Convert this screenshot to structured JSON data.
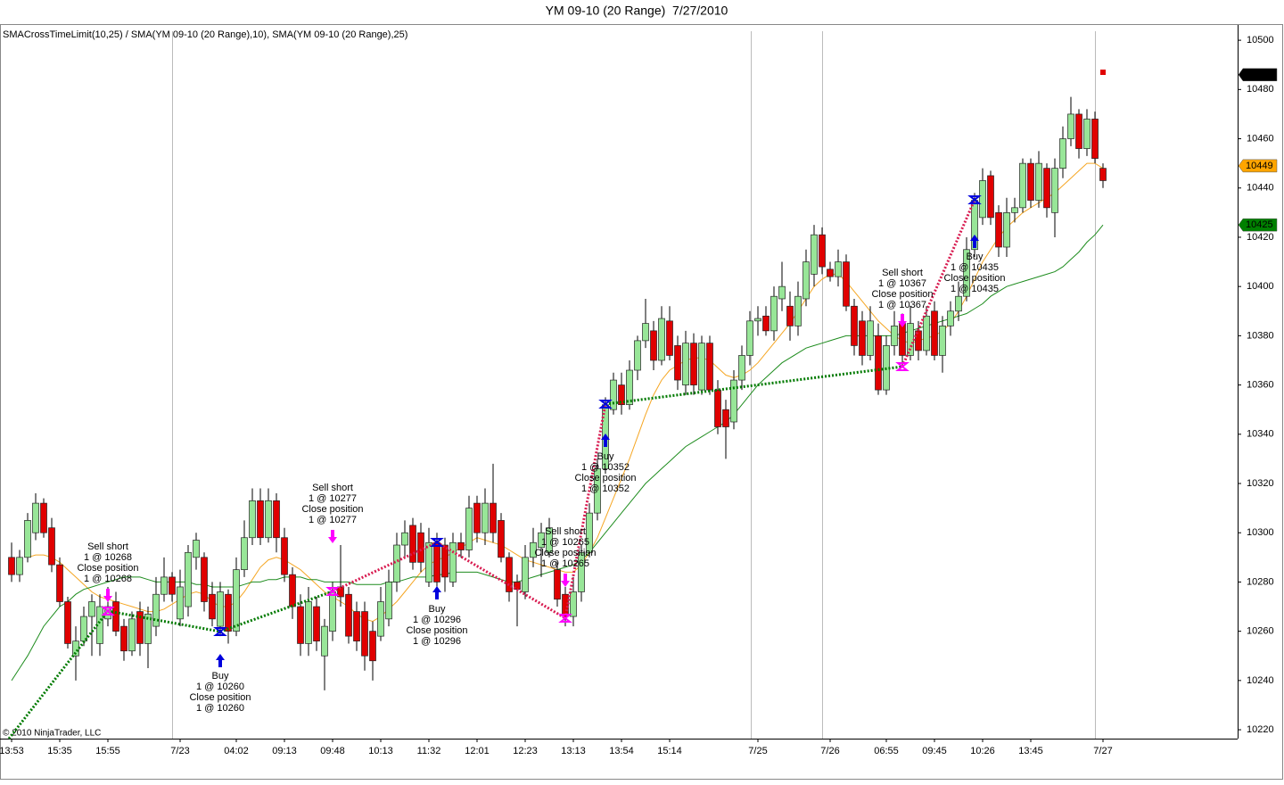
{
  "chart_data": {
    "type": "candlestick",
    "title": "YM 09-10 (20 Range)  7/27/2010",
    "indicator_label": "SMACrossTimeLimit(10,25) / SMA(YM 09-10 (20 Range),10), SMA(YM 09-10 (20 Range),25)",
    "copyright": "© 2010 NinjaTrader, LLC",
    "categories": [
      "13:53",
      null,
      null,
      null,
      null,
      null,
      "15:35",
      null,
      null,
      null,
      null,
      null,
      "15:55",
      null,
      null,
      null,
      null,
      null,
      null,
      null,
      null,
      "7/23",
      null,
      null,
      null,
      null,
      null,
      null,
      "04:02",
      null,
      null,
      null,
      null,
      null,
      "09:13",
      null,
      null,
      null,
      null,
      null,
      "09:48",
      null,
      null,
      null,
      null,
      null,
      "10:13",
      null,
      null,
      null,
      null,
      null,
      "11:32",
      null,
      null,
      null,
      null,
      null,
      "12:01",
      null,
      null,
      null,
      null,
      null,
      "12:23",
      null,
      null,
      null,
      null,
      null,
      "13:13",
      null,
      null,
      null,
      null,
      null,
      "13:54",
      null,
      null,
      null,
      null,
      null,
      "15:14",
      null,
      null,
      null,
      null,
      null,
      null,
      null,
      null,
      null,
      null,
      "7/25",
      null,
      null,
      null,
      null,
      null,
      null,
      null,
      null,
      "7/26",
      null,
      null,
      null,
      null,
      null,
      null,
      "06:55",
      null,
      null,
      null,
      null,
      null,
      "09:45",
      null,
      null,
      null,
      null,
      null,
      "10:26",
      null,
      null,
      null,
      null,
      null,
      "13:45",
      null,
      null,
      null,
      null,
      null,
      null,
      null,
      null,
      "7/27"
    ],
    "ohlc": [
      [
        10290,
        10296,
        10280,
        10283
      ],
      [
        10283,
        10293,
        10280,
        10290
      ],
      [
        10290,
        10308,
        10288,
        10305
      ],
      [
        10300,
        10316,
        10297,
        10312
      ],
      [
        10312,
        10314,
        10298,
        10300
      ],
      [
        10302,
        10306,
        10284,
        10287
      ],
      [
        10287,
        10290,
        10270,
        10272
      ],
      [
        10272,
        10274,
        10253,
        10255
      ],
      [
        10250,
        10262,
        10240,
        10256
      ],
      [
        10256,
        10270,
        10254,
        10266
      ],
      [
        10266,
        10275,
        10250,
        10272
      ],
      [
        10255,
        10275,
        10250,
        10270
      ],
      [
        10265,
        10278,
        10262,
        10270
      ],
      [
        10272,
        10276,
        10258,
        10260
      ],
      [
        10262,
        10265,
        10248,
        10252
      ],
      [
        10252,
        10268,
        10250,
        10265
      ],
      [
        10268,
        10272,
        10250,
        10255
      ],
      [
        10255,
        10270,
        10245,
        10267
      ],
      [
        10262,
        10282,
        10258,
        10275
      ],
      [
        10275,
        10290,
        10272,
        10282
      ],
      [
        10282,
        10284,
        10272,
        10275
      ],
      [
        10265,
        10285,
        10262,
        10278
      ],
      [
        10270,
        10295,
        10266,
        10292
      ],
      [
        10290,
        10300,
        10285,
        10297
      ],
      [
        10290,
        10292,
        10268,
        10272
      ],
      [
        10275,
        10280,
        10262,
        10265
      ],
      [
        10262,
        10280,
        10258,
        10276
      ],
      [
        10275,
        10277,
        10255,
        10260
      ],
      [
        10260,
        10290,
        10258,
        10285
      ],
      [
        10285,
        10305,
        10282,
        10298
      ],
      [
        10298,
        10318,
        10295,
        10313
      ],
      [
        10313,
        10318,
        10295,
        10298
      ],
      [
        10298,
        10318,
        10296,
        10313
      ],
      [
        10313,
        10316,
        10292,
        10298
      ],
      [
        10298,
        10302,
        10280,
        10283
      ],
      [
        10283,
        10286,
        10265,
        10270
      ],
      [
        10270,
        10275,
        10250,
        10255
      ],
      [
        10255,
        10278,
        10250,
        10272
      ],
      [
        10270,
        10274,
        10252,
        10256
      ],
      [
        10250,
        10265,
        10236,
        10262
      ],
      [
        10260,
        10280,
        10256,
        10276
      ],
      [
        10278,
        10295,
        10270,
        10274
      ],
      [
        10275,
        10278,
        10255,
        10258
      ],
      [
        10268,
        10272,
        10252,
        10256
      ],
      [
        10268,
        10272,
        10244,
        10250
      ],
      [
        10260,
        10264,
        10240,
        10248
      ],
      [
        10258,
        10278,
        10256,
        10272
      ],
      [
        10265,
        10285,
        10262,
        10280
      ],
      [
        10280,
        10300,
        10276,
        10295
      ],
      [
        10295,
        10305,
        10290,
        10300
      ],
      [
        10303,
        10306,
        10285,
        10288
      ],
      [
        10300,
        10304,
        10284,
        10288
      ],
      [
        10280,
        10302,
        10278,
        10296
      ],
      [
        10296,
        10300,
        10276,
        10280
      ],
      [
        10295,
        10298,
        10276,
        10282
      ],
      [
        10280,
        10300,
        10278,
        10296
      ],
      [
        10296,
        10300,
        10290,
        10293
      ],
      [
        10293,
        10315,
        10290,
        10310
      ],
      [
        10312,
        10315,
        10296,
        10300
      ],
      [
        10300,
        10318,
        10295,
        10312
      ],
      [
        10312,
        10328,
        10296,
        10300
      ],
      [
        10305,
        10308,
        10288,
        10290
      ],
      [
        10290,
        10292,
        10272,
        10276
      ],
      [
        10280,
        10283,
        10262,
        10277
      ],
      [
        10276,
        10295,
        10273,
        10290
      ],
      [
        10290,
        10302,
        10286,
        10296
      ],
      [
        10294,
        10304,
        10282,
        10300
      ],
      [
        10292,
        10306,
        10290,
        10302
      ],
      [
        10285,
        10288,
        10270,
        10273
      ],
      [
        10275,
        10278,
        10262,
        10266
      ],
      [
        10266,
        10282,
        10262,
        10276
      ],
      [
        10276,
        10295,
        10272,
        10292
      ],
      [
        10292,
        10312,
        10290,
        10308
      ],
      [
        10308,
        10330,
        10305,
        10326
      ],
      [
        10326,
        10355,
        10324,
        10352
      ],
      [
        10350,
        10365,
        10348,
        10362
      ],
      [
        10360,
        10365,
        10348,
        10352
      ],
      [
        10352,
        10370,
        10350,
        10366
      ],
      [
        10366,
        10380,
        10362,
        10378
      ],
      [
        10378,
        10395,
        10375,
        10385
      ],
      [
        10382,
        10386,
        10366,
        10370
      ],
      [
        10370,
        10392,
        10368,
        10387
      ],
      [
        10386,
        10392,
        10370,
        10372
      ],
      [
        10376,
        10380,
        10358,
        10362
      ],
      [
        10360,
        10382,
        10356,
        10377
      ],
      [
        10377,
        10381,
        10356,
        10360
      ],
      [
        10358,
        10380,
        10356,
        10377
      ],
      [
        10377,
        10380,
        10356,
        10358
      ],
      [
        10358,
        10362,
        10340,
        10343
      ],
      [
        10350,
        10354,
        10330,
        10343
      ],
      [
        10345,
        10366,
        10342,
        10362
      ],
      [
        10362,
        10376,
        10358,
        10372
      ],
      [
        10372,
        10390,
        10368,
        10386
      ],
      [
        10386,
        10392,
        10380,
        10387
      ],
      [
        10388,
        10392,
        10380,
        10382
      ],
      [
        10382,
        10400,
        10378,
        10396
      ],
      [
        10395,
        10410,
        10390,
        10400
      ],
      [
        10392,
        10398,
        10378,
        10384
      ],
      [
        10384,
        10402,
        10380,
        10396
      ],
      [
        10395,
        10415,
        10392,
        10410
      ],
      [
        10405,
        10425,
        10400,
        10421
      ],
      [
        10421,
        10424,
        10405,
        10408
      ],
      [
        10407,
        10410,
        10402,
        10404
      ],
      [
        10404,
        10415,
        10400,
        10410
      ],
      [
        10410,
        10413,
        10390,
        10392
      ],
      [
        10392,
        10395,
        10372,
        10376
      ],
      [
        10386,
        10390,
        10368,
        10372
      ],
      [
        10372,
        10392,
        10370,
        10386
      ],
      [
        10380,
        10385,
        10356,
        10358
      ],
      [
        10358,
        10380,
        10356,
        10376
      ],
      [
        10376,
        10390,
        10372,
        10384
      ],
      [
        10385,
        10389,
        10368,
        10372
      ],
      [
        10372,
        10392,
        10370,
        10385
      ],
      [
        10382,
        10386,
        10370,
        10374
      ],
      [
        10374,
        10392,
        10372,
        10388
      ],
      [
        10390,
        10394,
        10370,
        10372
      ],
      [
        10372,
        10388,
        10365,
        10384
      ],
      [
        10384,
        10394,
        10380,
        10390
      ],
      [
        10390,
        10402,
        10386,
        10396
      ],
      [
        10396,
        10420,
        10394,
        10415
      ],
      [
        10415,
        10438,
        10412,
        10435
      ],
      [
        10428,
        10448,
        10425,
        10443
      ],
      [
        10445,
        10447,
        10425,
        10428
      ],
      [
        10430,
        10433,
        10412,
        10416
      ],
      [
        10416,
        10436,
        10412,
        10430
      ],
      [
        10430,
        10436,
        10426,
        10432
      ],
      [
        10432,
        10452,
        10430,
        10450
      ],
      [
        10450,
        10452,
        10432,
        10435
      ],
      [
        10435,
        10455,
        10432,
        10450
      ],
      [
        10448,
        10450,
        10428,
        10432
      ],
      [
        10430,
        10452,
        10420,
        10448
      ],
      [
        10448,
        10465,
        10444,
        10460
      ],
      [
        10460,
        10477,
        10457,
        10470
      ],
      [
        10470,
        10472,
        10452,
        10456
      ],
      [
        10456,
        10472,
        10453,
        10468
      ],
      [
        10468,
        10471,
        10450,
        10452
      ],
      [
        10448,
        10450,
        10440,
        10443
      ]
    ],
    "up_color": "#98e698",
    "down_color": "#e00000",
    "series": [
      {
        "color": "#f5a623",
        "values": [
          null,
          null,
          10290,
          10291,
          10291,
          10290,
          10288,
          10285,
          10282,
          10279,
          10276,
          10274,
          10273,
          10272,
          10271,
          10270,
          10269,
          10268,
          10268,
          10269,
          10271,
          10273,
          10275,
          10276,
          10275,
          10272,
          10270,
          10270,
          10272,
          10276,
          10281,
          10286,
          10289,
          10290,
          10289,
          10287,
          10285,
          10282,
          10279,
          10276,
          10274,
          10272,
          10270,
          10267,
          10265,
          10264,
          10266,
          10269,
          10272,
          10276,
          10280,
          10284,
          10287,
          10289,
          10290,
          10292,
          10294,
          10296,
          10298,
          10297,
          10296,
          10295,
          10293,
          10291,
          10289,
          10288,
          10287,
          10286,
          10285,
          10284,
          10284,
          10287,
          10292,
          10298,
          10306,
          10314,
          10322,
          10330,
          10339,
          10348,
          10356,
          10362,
          10366,
          10368,
          10370,
          10371,
          10371,
          10370,
          10367,
          10364,
          10363,
          10364,
          10366,
          10369,
          10373,
          10377,
          10381,
          10385,
          10390,
          10395,
          10400,
          10403,
          10405,
          10405,
          10402,
          10398,
          10394,
          10390,
          10386,
          10383,
          10380,
          10378,
          10377,
          10378,
          10379,
          10380,
          10382,
          10385,
          10390,
          10396,
          10403,
          10410,
          10415,
          10420,
          10424,
          10427,
          10430,
          10432,
          10434,
          10436,
          10438,
          10441,
          10444,
          10447,
          10450,
          10450,
          10448
        ]
      },
      {
        "color": "#1e8c1e",
        "values": [
          10240,
          10245,
          10250,
          10256,
          10262,
          10266,
          10270,
          10272,
          10275,
          10277,
          10278,
          10279,
          10280,
          10281,
          10282,
          10282,
          10282,
          10281,
          10280,
          10280,
          10280,
          10280,
          10280,
          10279,
          10279,
          10278,
          10278,
          10278,
          10278,
          10279,
          10280,
          10280,
          10281,
          10281,
          10282,
          10282,
          10282,
          10281,
          10281,
          10280,
          10280,
          10280,
          10280,
          10279,
          10279,
          10279,
          10279,
          10280,
          10280,
          10281,
          10282,
          10282,
          10282,
          10283,
          10283,
          10284,
          10284,
          10284,
          10284,
          10283,
          10282,
          10281,
          10280,
          10280,
          10281,
          10282,
          10283,
          10284,
          10285,
          10286,
          10287,
          10289,
          10292,
          10296,
          10300,
          10304,
          10308,
          10312,
          10316,
          10320,
          10323,
          10326,
          10329,
          10332,
          10335,
          10337,
          10339,
          10341,
          10343,
          10345,
          10348,
          10352,
          10356,
          10360,
          10363,
          10366,
          10369,
          10371,
          10373,
          10375,
          10376,
          10377,
          10378,
          10379,
          10380,
          10380,
          10380,
          10380,
          10380,
          10380,
          10380,
          10381,
          10382,
          10383,
          10384,
          10385,
          10386,
          10387,
          10388,
          10389,
          10391,
          10393,
          10396,
          10398,
          10400,
          10401,
          10402,
          10403,
          10404,
          10405,
          10406,
          10408,
          10411,
          10414,
          10418,
          10421,
          10425
        ]
      }
    ],
    "ylim": [
      10216.4,
      10506.2
    ],
    "yticks": [
      10220,
      10240,
      10260,
      10280,
      10300,
      10320,
      10340,
      10360,
      10380,
      10400,
      10420,
      10440,
      10460,
      10480,
      10500
    ],
    "price_markers": [
      {
        "value": 10486,
        "color": "#000000",
        "text_color": "#ffffff"
      },
      {
        "value": 10449,
        "color": "#ffa500",
        "text_color": "#000000"
      },
      {
        "value": 10425,
        "color": "#008000",
        "text_color": "#ffffff"
      }
    ],
    "trades": [
      {
        "lines": [
          "Sell short",
          "1 @ 10268",
          "Close position",
          "1 @ 10268"
        ]
      },
      {
        "lines": [
          "Buy",
          "1 @ 10260",
          "Close position",
          "1 @ 10260"
        ]
      },
      {
        "lines": [
          "Sell short",
          "1 @ 10277",
          "Close position",
          "1 @ 10277"
        ]
      },
      {
        "lines": [
          "Buy",
          "1 @ 10296",
          "Close position",
          "1 @ 10296"
        ]
      },
      {
        "lines": [
          "Sell short",
          "1 @ 10265",
          "Close position",
          "1 @ 10265"
        ]
      },
      {
        "lines": [
          "Buy",
          "1 @ 10352",
          "Close position",
          "1 @ 10352"
        ]
      },
      {
        "lines": [
          "Sell short",
          "1 @ 10367",
          "Close position",
          "1 @ 10367"
        ]
      },
      {
        "lines": [
          "Buy",
          "1 @ 10435",
          "Close position",
          "1 @ 10435"
        ]
      }
    ]
  }
}
